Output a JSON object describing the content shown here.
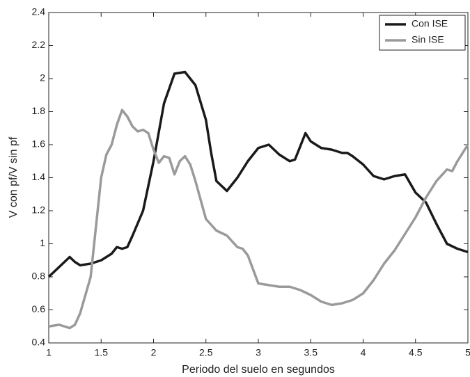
{
  "chart_data": {
    "type": "line",
    "xlabel": "Periodo del suelo en segundos",
    "ylabel": "V con pf/V sin pf",
    "xlim": [
      1,
      5
    ],
    "xticks": [
      1,
      1.5,
      2,
      2.5,
      3,
      3.5,
      4,
      4.5,
      5
    ],
    "ylim": [
      0.4,
      2.4
    ],
    "yticks": [
      0.4,
      0.6,
      0.8,
      1,
      1.2,
      1.4,
      1.6,
      1.8,
      2,
      2.2,
      2.4
    ],
    "grid": false,
    "legend": "upper right",
    "series": [
      {
        "name": "Con ISE",
        "color": "#1a1a1a",
        "x": [
          1.0,
          1.1,
          1.2,
          1.25,
          1.3,
          1.4,
          1.5,
          1.6,
          1.65,
          1.7,
          1.75,
          1.8,
          1.9,
          2.0,
          2.1,
          2.2,
          2.3,
          2.4,
          2.5,
          2.55,
          2.6,
          2.7,
          2.8,
          2.9,
          3.0,
          3.1,
          3.2,
          3.3,
          3.35,
          3.45,
          3.5,
          3.6,
          3.7,
          3.8,
          3.85,
          3.9,
          4.0,
          4.1,
          4.2,
          4.3,
          4.4,
          4.5,
          4.6,
          4.7,
          4.8,
          4.9,
          5.0
        ],
        "values": [
          0.8,
          0.86,
          0.92,
          0.89,
          0.87,
          0.88,
          0.9,
          0.94,
          0.98,
          0.97,
          0.98,
          1.05,
          1.2,
          1.5,
          1.85,
          2.03,
          2.04,
          1.96,
          1.75,
          1.55,
          1.38,
          1.32,
          1.4,
          1.5,
          1.58,
          1.6,
          1.54,
          1.5,
          1.51,
          1.67,
          1.62,
          1.58,
          1.57,
          1.55,
          1.55,
          1.53,
          1.48,
          1.41,
          1.39,
          1.41,
          1.42,
          1.31,
          1.25,
          1.12,
          1.0,
          0.97,
          0.95
        ]
      },
      {
        "name": "Sin ISE",
        "color": "#9a9a9a",
        "x": [
          1.0,
          1.1,
          1.15,
          1.2,
          1.25,
          1.3,
          1.4,
          1.5,
          1.55,
          1.6,
          1.65,
          1.7,
          1.75,
          1.8,
          1.85,
          1.9,
          1.95,
          2.0,
          2.05,
          2.1,
          2.15,
          2.2,
          2.25,
          2.3,
          2.35,
          2.4,
          2.5,
          2.6,
          2.7,
          2.8,
          2.85,
          2.9,
          3.0,
          3.1,
          3.2,
          3.3,
          3.4,
          3.5,
          3.6,
          3.7,
          3.8,
          3.9,
          4.0,
          4.1,
          4.2,
          4.3,
          4.4,
          4.5,
          4.6,
          4.7,
          4.8,
          4.85,
          4.9,
          5.0
        ],
        "values": [
          0.5,
          0.51,
          0.5,
          0.49,
          0.51,
          0.58,
          0.8,
          1.4,
          1.54,
          1.6,
          1.72,
          1.81,
          1.77,
          1.71,
          1.68,
          1.69,
          1.67,
          1.57,
          1.49,
          1.53,
          1.52,
          1.42,
          1.5,
          1.53,
          1.48,
          1.38,
          1.15,
          1.08,
          1.05,
          0.98,
          0.97,
          0.93,
          0.76,
          0.75,
          0.74,
          0.74,
          0.72,
          0.69,
          0.65,
          0.63,
          0.64,
          0.66,
          0.7,
          0.78,
          0.88,
          0.96,
          1.06,
          1.16,
          1.28,
          1.38,
          1.45,
          1.44,
          1.5,
          1.6
        ]
      }
    ]
  }
}
